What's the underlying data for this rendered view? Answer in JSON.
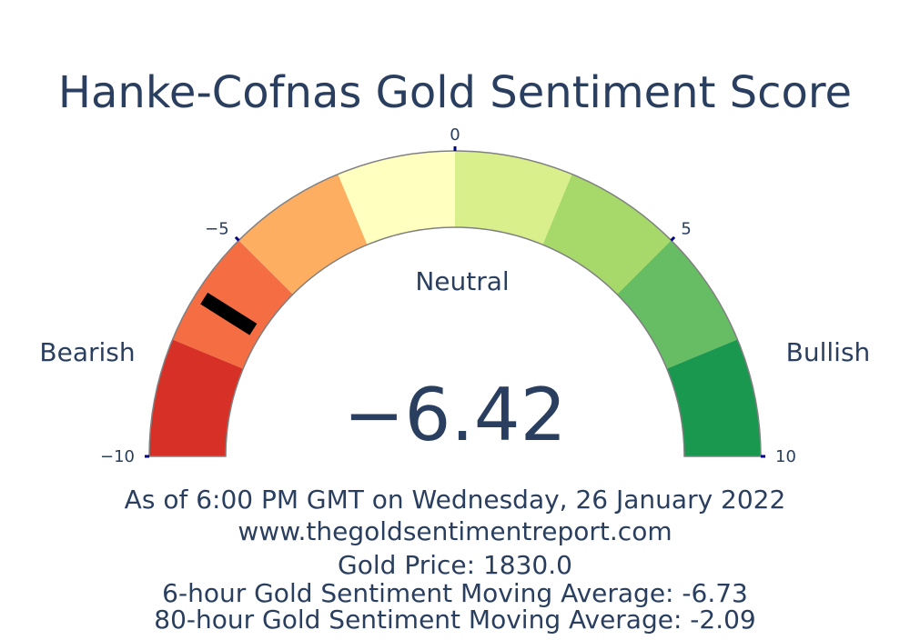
{
  "chart_data": {
    "type": "gauge",
    "title": "Hanke-Cofnas Gold Sentiment Score",
    "value": -6.42,
    "value_display": "−6.42",
    "range": [
      -10,
      10
    ],
    "ticks": [
      {
        "value": -10,
        "label": "−10"
      },
      {
        "value": -5,
        "label": "−5"
      },
      {
        "value": 0,
        "label": "0"
      },
      {
        "value": 5,
        "label": "5"
      },
      {
        "value": 10,
        "label": "10"
      }
    ],
    "bands": [
      {
        "from": -10,
        "to": -7.5,
        "color": "#d73027"
      },
      {
        "from": -7.5,
        "to": -5,
        "color": "#f46d43"
      },
      {
        "from": -5,
        "to": -2.5,
        "color": "#fdae61"
      },
      {
        "from": -2.5,
        "to": 0,
        "color": "#ffffbf"
      },
      {
        "from": 0,
        "to": 2.5,
        "color": "#d9ef8b"
      },
      {
        "from": 2.5,
        "to": 5,
        "color": "#a6d96a"
      },
      {
        "from": 5,
        "to": 7.5,
        "color": "#66bd63"
      },
      {
        "from": 7.5,
        "to": 10,
        "color": "#1a9850"
      }
    ],
    "annotations": {
      "left": "Bearish",
      "center": "Neutral",
      "right": "Bullish"
    }
  },
  "footer": {
    "timestamp": "As of 6:00 PM GMT on Wednesday, 26 January 2022",
    "website": "www.thegoldsentimentreport.com",
    "gold_price": "Gold Price: 1830.0",
    "ma6": "6-hour Gold Sentiment Moving Average: -6.73",
    "ma80": "80-hour Gold Sentiment Moving Average: -2.09"
  },
  "colors": {
    "text": "#2a3f5f",
    "tick": "#00008b",
    "needle": "#000000",
    "border": "#808080"
  }
}
